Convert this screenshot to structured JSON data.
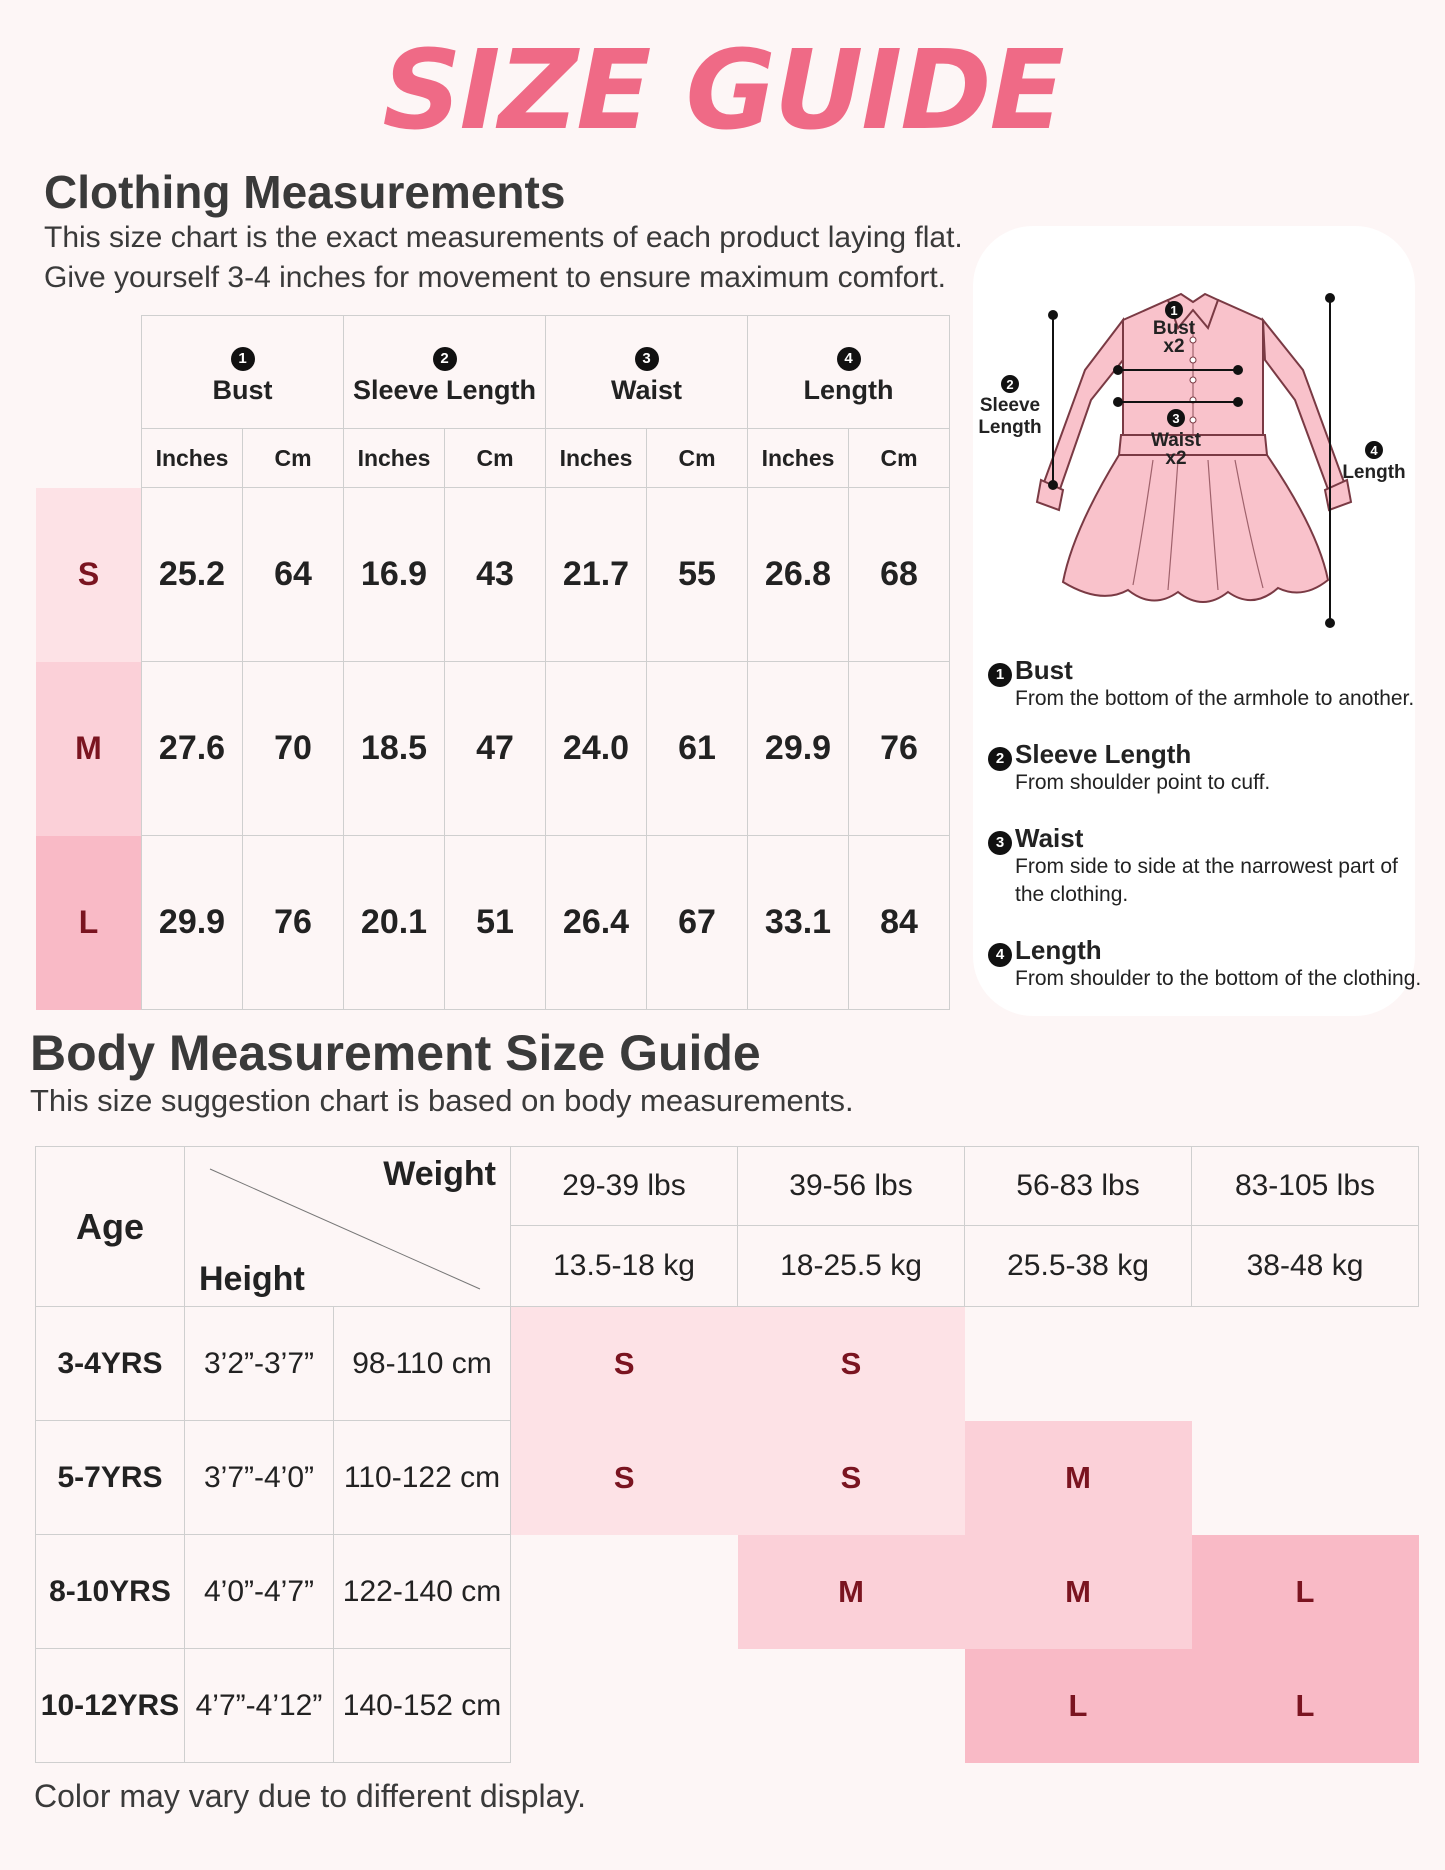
{
  "title": "SIZE GUIDE",
  "clothing": {
    "heading": "Clothing Measurements",
    "desc_line1": "This size chart is the exact measurements of each product laying flat.",
    "desc_line2": "Give yourself 3-4 inches for movement to ensure maximum comfort.",
    "columns": [
      {
        "num": "1",
        "label": "Bust"
      },
      {
        "num": "2",
        "label": "Sleeve Length"
      },
      {
        "num": "3",
        "label": "Waist"
      },
      {
        "num": "4",
        "label": "Length"
      }
    ],
    "unit_inches": "Inches",
    "unit_cm": "Cm",
    "rows": [
      {
        "size": "S",
        "values": [
          "25.2",
          "64",
          "16.9",
          "43",
          "21.7",
          "55",
          "26.8",
          "68"
        ],
        "color": "#fde2e6"
      },
      {
        "size": "M",
        "values": [
          "27.6",
          "70",
          "18.5",
          "47",
          "24.0",
          "61",
          "29.9",
          "76"
        ],
        "color": "#fbd0d8"
      },
      {
        "size": "L",
        "values": [
          "29.9",
          "76",
          "20.1",
          "51",
          "26.4",
          "67",
          "33.1",
          "84"
        ],
        "color": "#f9bac6"
      }
    ]
  },
  "diagram": {
    "bust_num": "1",
    "bust_label": "Bust",
    "bust_mult": "x2",
    "sleeve_num": "2",
    "sleeve_label1": "Sleeve",
    "sleeve_label2": "Length",
    "waist_num": "3",
    "waist_label": "Waist",
    "waist_mult": "x2",
    "length_num": "4",
    "length_label": "Length",
    "dress_color": "#f9c2cb"
  },
  "definitions": [
    {
      "num": "1",
      "term": "Bust",
      "desc": "From the bottom of the armhole to another."
    },
    {
      "num": "2",
      "term": "Sleeve Length",
      "desc": "From shoulder point to cuff."
    },
    {
      "num": "3",
      "term": "Waist",
      "desc": "From side to side at the narrowest part of the clothing."
    },
    {
      "num": "4",
      "term": "Length",
      "desc": "From shoulder to the bottom of the clothing."
    }
  ],
  "body": {
    "heading": "Body Measurement Size Guide",
    "desc": "This size suggestion chart is based on body measurements.",
    "age_label": "Age",
    "weight_label": "Weight",
    "height_label": "Height",
    "weights_lbs": [
      "29-39 lbs",
      "39-56 lbs",
      "56-83 lbs",
      "83-105 lbs"
    ],
    "weights_kg": [
      "13.5-18 kg",
      "18-25.5 kg",
      "25.5-38 kg",
      "38-48 kg"
    ],
    "rows": [
      {
        "age": "3-4YRS",
        "height_ft": "3’2”-3’7”",
        "height_cm": "98-110 cm",
        "sizes": [
          "S",
          "S",
          "",
          ""
        ]
      },
      {
        "age": "5-7YRS",
        "height_ft": "3’7”-4’0”",
        "height_cm": "110-122 cm",
        "sizes": [
          "S",
          "S",
          "M",
          ""
        ]
      },
      {
        "age": "8-10YRS",
        "height_ft": "4’0”-4’7”",
        "height_cm": "122-140 cm",
        "sizes": [
          "",
          "M",
          "M",
          "L"
        ]
      },
      {
        "age": "10-12YRS",
        "height_ft": "4’7”-4’12”",
        "height_cm": "140-152 cm",
        "sizes": [
          "",
          "",
          "L",
          "L"
        ]
      }
    ]
  },
  "footer": "Color may vary due to different display."
}
